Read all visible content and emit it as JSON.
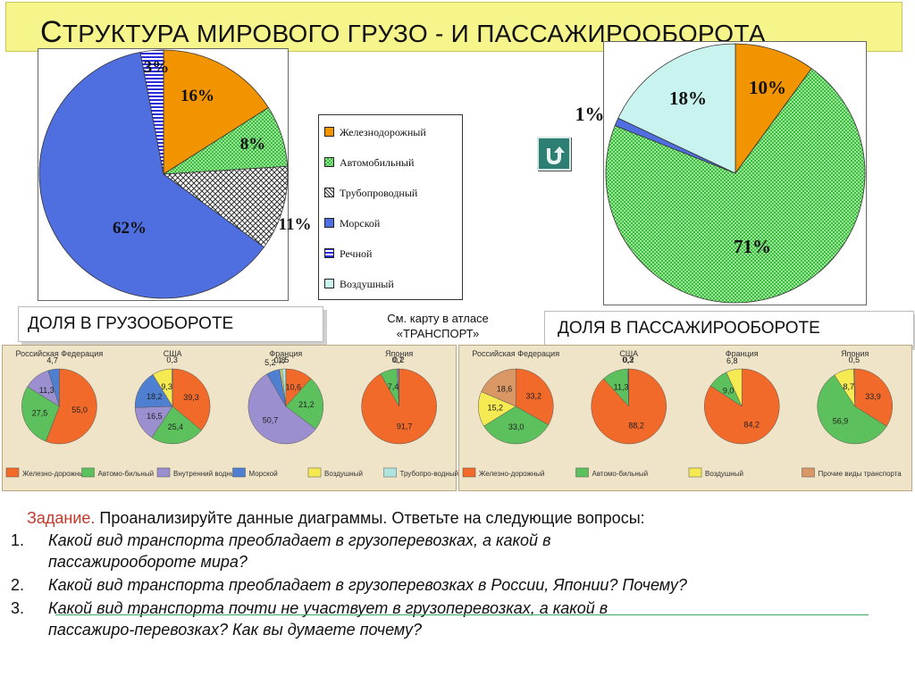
{
  "title": "Структура мирового грузо - и пассажирооборота",
  "colors": {
    "rail": "#f29400",
    "auto": "#7ee07e",
    "pipe": "#b8b8b8",
    "sea": "#4f6fe0",
    "river": "#2b2bd9",
    "air": "#c8f3ee"
  },
  "chart_data": [
    {
      "type": "pie",
      "title": "",
      "slices": [
        {
          "label": "Железнодорожный",
          "value": 16
        },
        {
          "label": "Автомобильный",
          "value": 8
        },
        {
          "label": "Трубопроводный",
          "value": 11
        },
        {
          "label": "Морской",
          "value": 62
        },
        {
          "label": "Речной",
          "value": 3
        }
      ],
      "legend": [
        "Железнодорожный",
        "Автомобильный",
        "Трубопроводный",
        "Морской",
        "Речной",
        "Воздушный"
      ],
      "legend_position": "right"
    },
    {
      "type": "pie",
      "title": "",
      "slices": [
        {
          "label": "Железнодорожный",
          "value": 10
        },
        {
          "label": "Автомобильный",
          "value": 71
        },
        {
          "label": "Морской",
          "value": 1
        },
        {
          "label": "Воздушный",
          "value": 18
        }
      ]
    }
  ],
  "freight_label": "ДОЛЯ В ГРУЗООБОРОТЕ",
  "passenger_label": "ДОЛЯ В ПАССАЖИРООБОРОТЕ",
  "atlas_note": [
    "См. карту в атласе",
    "«ТРАНСПОРТ»"
  ],
  "atlas_freight": {
    "countries": [
      {
        "name": "Российская Федерация",
        "values": [
          "55,0",
          "27,5",
          "11,3",
          "4,7"
        ]
      },
      {
        "name": "США",
        "values": [
          "39,3",
          "25,4",
          "16,5",
          "18,2",
          "9,3",
          "0,3"
        ]
      },
      {
        "name": "Франция",
        "values": [
          "10,6",
          "21,2",
          "50,7",
          "5,2",
          "0,8",
          "1,5"
        ]
      },
      {
        "name": "Япония",
        "values": [
          "91,7",
          "7,4",
          "0,7",
          "0,2"
        ]
      }
    ],
    "legend": [
      "Железно-дорожный",
      "Автомо-бильный",
      "Внутренний водный",
      "Морской",
      "Воздушный",
      "Трубопро-водный"
    ]
  },
  "atlas_passenger": {
    "countries": [
      {
        "name": "Российская Федерация",
        "values": [
          "33,2",
          "33,0",
          "15,2",
          "18,6"
        ]
      },
      {
        "name": "США",
        "values": [
          "88,2",
          "11,3",
          "0,3",
          "0,2"
        ]
      },
      {
        "name": "Франция",
        "values": [
          "84,2",
          "9,0",
          "6,8"
        ]
      },
      {
        "name": "Япония",
        "values": [
          "33,9",
          "56,9",
          "8,7",
          "0,5"
        ]
      }
    ],
    "legend": [
      "Железно-дорожный",
      "Автомо-бильный",
      "Воздушный",
      "Прочие виды транспорта"
    ]
  },
  "task": {
    "label": "Задание.",
    "text": "Проанализируйте данные диаграммы. Ответьте на следующие вопросы:",
    "questions": [
      {
        "num": "1.",
        "lines": [
          "Какой вид транспорта преобладает в грузоперевозках, а какой в",
          "пассажирообороте  мира?"
        ]
      },
      {
        "num": "2.",
        "lines": [
          "Какой вид транспорта преобладает в грузоперевозках в России, Японии? Почему?"
        ]
      },
      {
        "num": "3.",
        "lines": [
          "Какой вид транспорта почти не участвует в грузоперевозках, а какой в",
          "пассажиро-перевозках? Как вы думаете почему?"
        ]
      }
    ]
  }
}
